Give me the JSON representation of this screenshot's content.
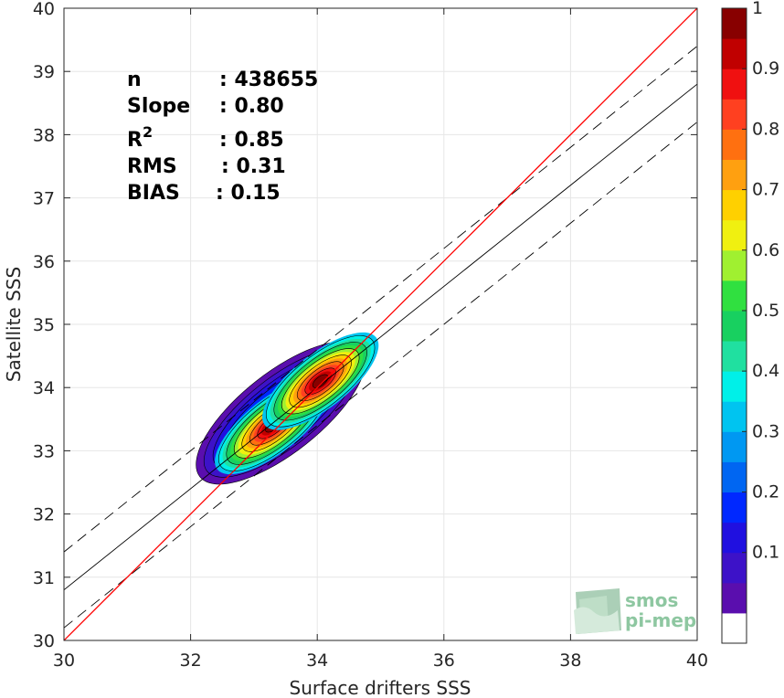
{
  "chart_data": {
    "type": "heatmap",
    "subtype": "normalized 2D density contour scatter",
    "xlabel": "Surface drifters SSS",
    "ylabel": "Satellite SSS",
    "xlim": [
      30,
      40
    ],
    "ylim": [
      30,
      40
    ],
    "x_ticks": [
      "30",
      "32",
      "34",
      "36",
      "38",
      "40"
    ],
    "y_ticks": [
      "30",
      "31",
      "32",
      "33",
      "34",
      "35",
      "36",
      "37",
      "38",
      "39",
      "40"
    ],
    "grid": true,
    "stats": [
      {
        "label": "n",
        "value": ": 438655"
      },
      {
        "label": "Slope",
        "value": ": 0.80"
      },
      {
        "label": "R",
        "sup": "2",
        "value": ": 0.85"
      },
      {
        "label": "RMS",
        "value": ": 0.31"
      },
      {
        "label": "BIAS",
        "value": ": 0.15"
      }
    ],
    "lines": {
      "identity": {
        "slope": 1.0,
        "intercept": 0.0,
        "color": "#ff0000",
        "style": "solid"
      },
      "regression": {
        "slope": 0.8,
        "intercept": 6.8,
        "color": "#000000",
        "style": "solid"
      },
      "regression_upper": {
        "slope": 0.8,
        "intercept": 7.4,
        "color": "#000000",
        "style": "dashed"
      },
      "regression_lower": {
        "slope": 0.8,
        "intercept": 6.2,
        "color": "#000000",
        "style": "dashed"
      }
    },
    "density_peaks": [
      {
        "x": 33.3,
        "y": 33.4,
        "value": 1.0
      },
      {
        "x": 34.05,
        "y": 34.1,
        "value": 1.0
      }
    ],
    "density_ridge": {
      "start": [
        32.35,
        32.75
      ],
      "end": [
        34.5,
        34.45
      ]
    },
    "colorbar": {
      "ticks": [
        "0.1",
        "0.2",
        "0.3",
        "0.4",
        "0.5",
        "0.6",
        "0.7",
        "0.8",
        "0.9",
        "1"
      ],
      "levels": [
        0,
        0.05,
        0.1,
        0.15,
        0.2,
        0.25,
        0.3,
        0.35,
        0.4,
        0.45,
        0.5,
        0.55,
        0.6,
        0.65,
        0.7,
        0.75,
        0.8,
        0.85,
        0.9,
        0.95,
        1.0
      ],
      "colors": [
        "#ffffff",
        "#5a0eae",
        "#3d12c8",
        "#2010e0",
        "#0028ff",
        "#0066f2",
        "#0098f2",
        "#00c4f0",
        "#00f0e8",
        "#20e0a0",
        "#18d060",
        "#30e040",
        "#a0f030",
        "#f0f010",
        "#ffd000",
        "#ffa010",
        "#ff7010",
        "#ff4020",
        "#f01010",
        "#c00000",
        "#880000"
      ]
    }
  },
  "logo": {
    "line1": "smos",
    "line2": "pi-mep"
  }
}
